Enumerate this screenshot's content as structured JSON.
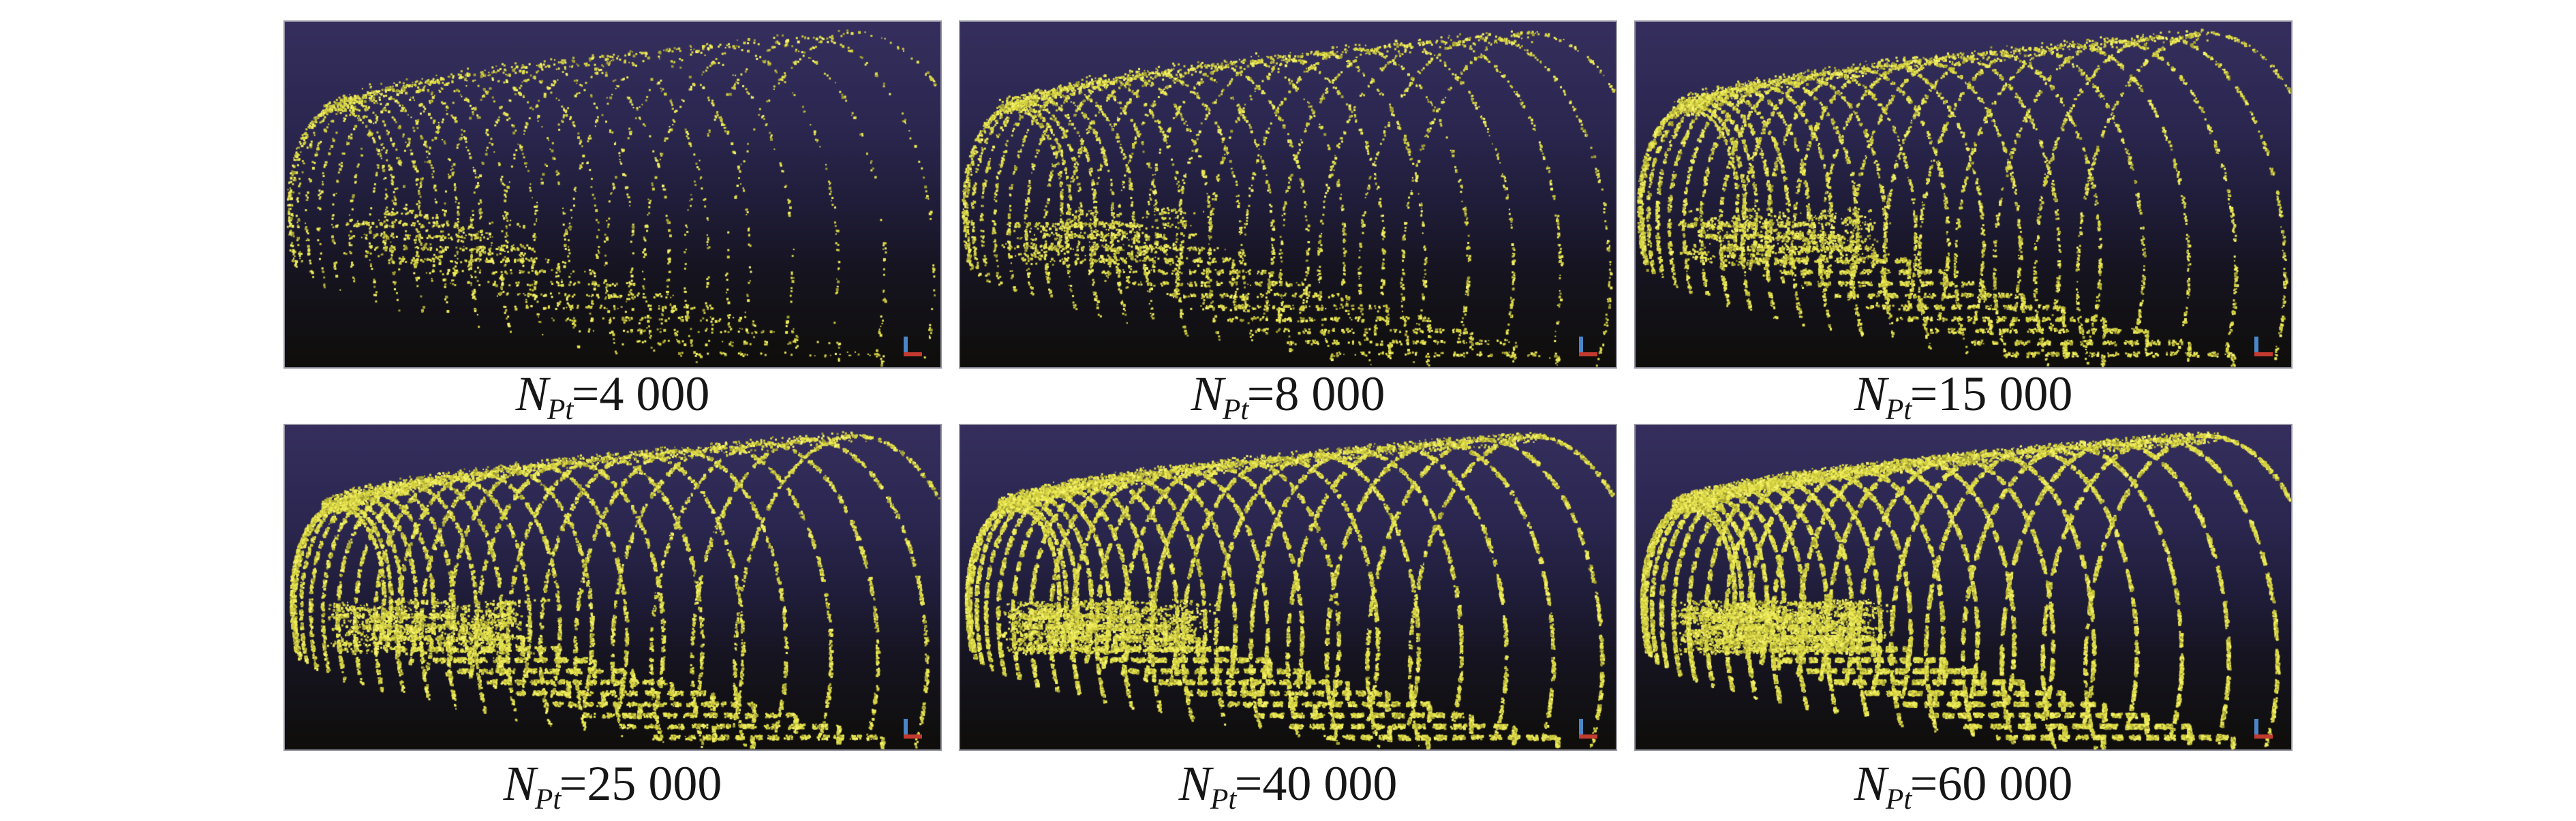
{
  "figure": {
    "type": "point-cloud-montage",
    "description_tag": "tunnel-point-cloud-downsampling-comparison",
    "n_points_series": [
      4000,
      8000,
      15000,
      25000,
      40000,
      60000
    ],
    "panels": [
      {
        "caption_symbol": "N",
        "caption_sub": "Pt",
        "caption_value": "=4 000",
        "n_points": 4000
      },
      {
        "caption_symbol": "N",
        "caption_sub": "Pt",
        "caption_value": "=8 000",
        "n_points": 8000
      },
      {
        "caption_symbol": "N",
        "caption_sub": "Pt",
        "caption_value": "=15 000",
        "n_points": 15000
      },
      {
        "caption_symbol": "N",
        "caption_sub": "Pt",
        "caption_value": "=25 000",
        "n_points": 25000
      },
      {
        "caption_symbol": "N",
        "caption_sub": "Pt",
        "caption_value": "=40 000",
        "n_points": 40000
      },
      {
        "caption_symbol": "N",
        "caption_sub": "Pt",
        "caption_value": "=60 000",
        "n_points": 60000
      }
    ],
    "colors": {
      "page_background": "#ffffff",
      "panel_border": "#9494a2",
      "background_top": "#362f5e",
      "background_upper_mid": "#2b2750",
      "background_mid": "#201d3a",
      "background_lower_mid": "#161420",
      "background_bottom": "#0f0e0b",
      "point_dim": "#a29f33",
      "point_base": "#d2cf40",
      "point_bright": "#ecea55",
      "point_peak": "#f8f570",
      "axis_vertical": "#4a86c8",
      "axis_horizontal": "#c23a30",
      "caption_color": "#161616"
    }
  }
}
